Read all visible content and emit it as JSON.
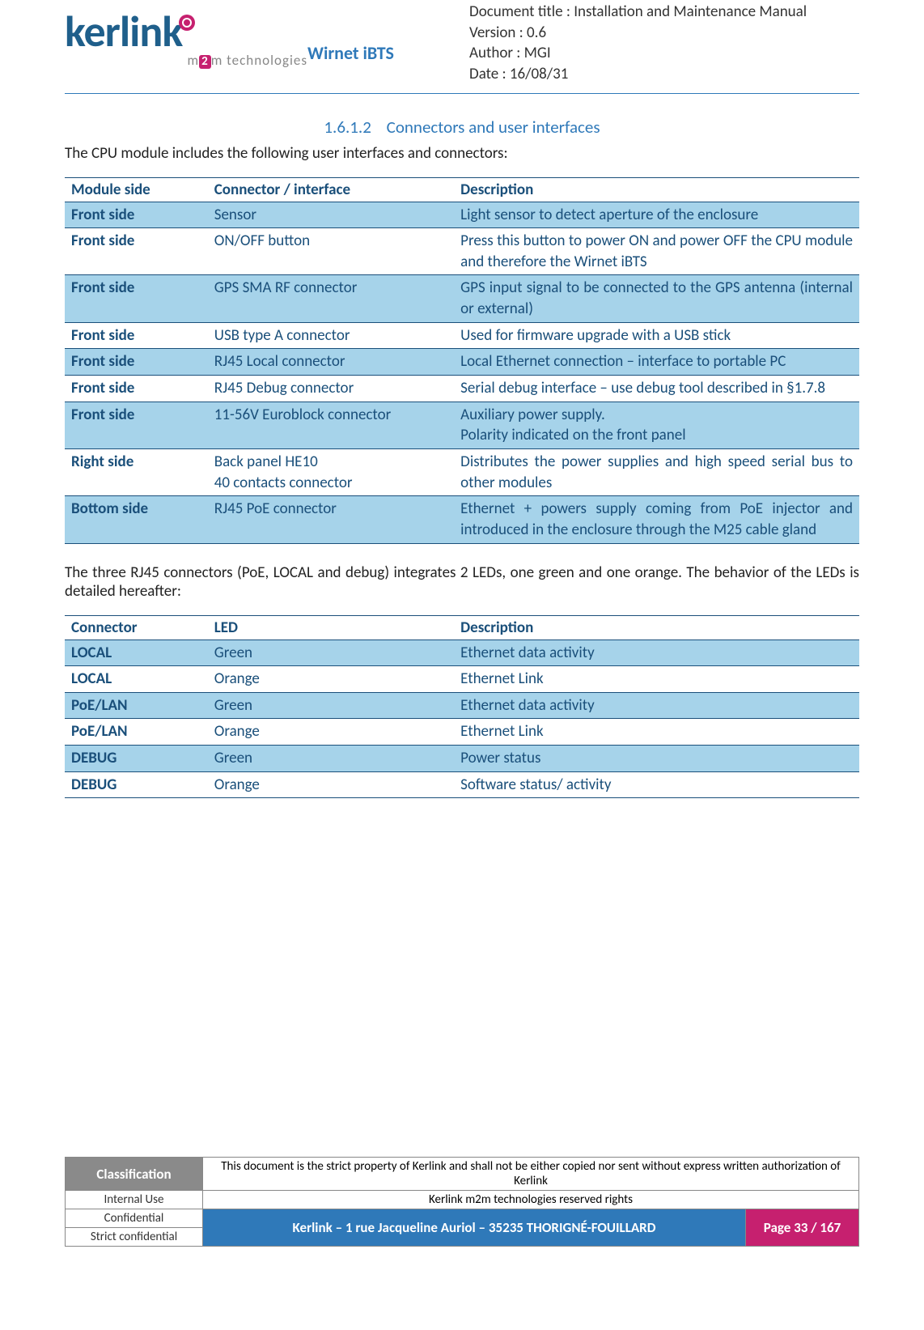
{
  "header": {
    "logo_text": "kerlink",
    "logo_sub_pre": "m",
    "logo_sub_two": "2",
    "logo_sub_post": "m technologies",
    "product": "Wirnet iBTS",
    "meta_title": "Document title : Installation and Maintenance Manual",
    "meta_version": "Version : 0.6",
    "meta_author": "Author : MGI",
    "meta_date": "Date : 16/08/31"
  },
  "section": {
    "number": "1.6.1.2",
    "title": "Connectors and user interfaces",
    "intro": "The CPU module includes the following user interfaces and connectors:"
  },
  "table1": {
    "headers": [
      "Module side",
      "Connector / interface",
      "Description"
    ],
    "rows": [
      {
        "shaded": true,
        "c": [
          "Front side",
          "Sensor",
          "Light sensor to detect aperture of the enclosure"
        ]
      },
      {
        "shaded": false,
        "c": [
          "Front side",
          "ON/OFF button",
          "Press this button to power ON and power OFF the CPU module and therefore the Wirnet iBTS"
        ]
      },
      {
        "shaded": true,
        "c": [
          "Front side",
          "GPS SMA RF connector",
          "GPS input signal to be connected to the GPS antenna (internal or external)"
        ]
      },
      {
        "shaded": false,
        "c": [
          "Front side",
          "USB type A connector",
          "Used for firmware upgrade with a USB stick"
        ]
      },
      {
        "shaded": true,
        "c": [
          "Front side",
          "RJ45 Local connector",
          "Local Ethernet connection – interface to portable PC"
        ]
      },
      {
        "shaded": false,
        "c": [
          "Front side",
          "RJ45 Debug connector",
          "Serial debug interface – use debug tool described in §1.7.8"
        ]
      },
      {
        "shaded": true,
        "c": [
          "Front side",
          "11-56V Euroblock connector",
          "Auxiliary power supply.\nPolarity indicated on the front panel"
        ]
      },
      {
        "shaded": false,
        "c": [
          "Right side",
          "Back panel HE10\n40 contacts connector",
          "Distributes the power supplies and high speed serial bus to other modules"
        ]
      },
      {
        "shaded": true,
        "c": [
          "Bottom side",
          "RJ45 PoE connector",
          "Ethernet + powers supply coming from PoE injector and introduced in the enclosure through the M25 cable gland"
        ]
      }
    ]
  },
  "mid_text": "The three RJ45 connectors (PoE, LOCAL and debug) integrates 2 LEDs, one green and one orange. The behavior of the LEDs is detailed hereafter:",
  "table2": {
    "headers": [
      "Connector",
      "LED",
      "Description"
    ],
    "rows": [
      {
        "shaded": true,
        "c": [
          "LOCAL",
          "Green",
          "Ethernet data activity"
        ]
      },
      {
        "shaded": false,
        "c": [
          "LOCAL",
          "Orange",
          "Ethernet Link"
        ]
      },
      {
        "shaded": true,
        "c": [
          "PoE/LAN",
          "Green",
          "Ethernet data activity"
        ]
      },
      {
        "shaded": false,
        "c": [
          "PoE/LAN",
          "Orange",
          "Ethernet Link"
        ]
      },
      {
        "shaded": true,
        "c": [
          "DEBUG",
          "Green",
          "Power status"
        ]
      },
      {
        "shaded": false,
        "c": [
          "DEBUG",
          "Orange",
          "Software status/ activity"
        ]
      }
    ]
  },
  "footer": {
    "classification_label": "Classification",
    "prop_text": "This document is the strict property of Kerlink and shall not be either copied nor sent without express written authorization of Kerlink",
    "internal": "Internal Use",
    "reserved": "Kerlink m2m technologies reserved rights",
    "confidential": "Confidential",
    "strict": "Strict confidential",
    "address": "Kerlink – 1 rue Jacqueline Auriol – 35235 THORIGNÉ-FOUILLARD",
    "page": "Page 33 / 167"
  }
}
